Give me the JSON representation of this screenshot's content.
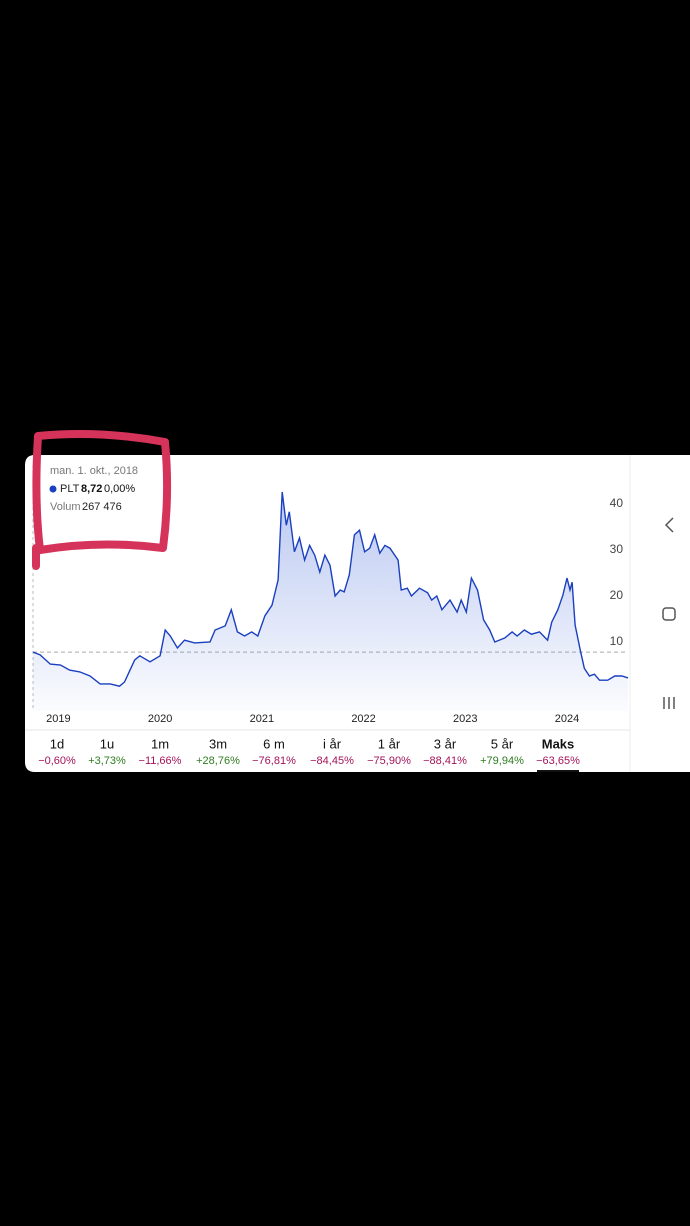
{
  "tooltip": {
    "date": "man. 1. okt., 2018",
    "symbol": "PLT",
    "price": "8,72",
    "change": "0,00%",
    "volume_label": "Volum",
    "volume": "267 476"
  },
  "chart_data": {
    "type": "line",
    "x": [
      2018.75,
      2018.82,
      2018.92,
      2019.02,
      2019.11,
      2019.21,
      2019.31,
      2019.41,
      2019.51,
      2019.6,
      2019.65,
      2019.75,
      2019.8,
      2019.9,
      2020.0,
      2020.05,
      2020.1,
      2020.17,
      2020.24,
      2020.34,
      2020.49,
      2020.54,
      2020.64,
      2020.7,
      2020.76,
      2020.83,
      2020.9,
      2020.96,
      2021.03,
      2021.1,
      2021.16,
      2021.2,
      2021.24,
      2021.27,
      2021.32,
      2021.37,
      2021.42,
      2021.47,
      2021.52,
      2021.57,
      2021.62,
      2021.67,
      2021.72,
      2021.77,
      2021.81,
      2021.86,
      2021.91,
      2021.96,
      2022.01,
      2022.06,
      2022.11,
      2022.16,
      2022.21,
      2022.26,
      2022.34,
      2022.37,
      2022.43,
      2022.47,
      2022.55,
      2022.63,
      2022.67,
      2022.72,
      2022.77,
      2022.85,
      2022.92,
      2022.96,
      2023.01,
      2023.06,
      2023.12,
      2023.18,
      2023.24,
      2023.29,
      2023.39,
      2023.46,
      2023.51,
      2023.58,
      2023.65,
      2023.73,
      2023.81,
      2023.85,
      2023.91,
      2023.96,
      2024.0,
      2024.03,
      2024.05,
      2024.08,
      2024.13,
      2024.17,
      2024.22,
      2024.27,
      2024.32,
      2024.4,
      2024.47,
      2024.54,
      2024.6
    ],
    "series": [
      {
        "name": "PLT",
        "color": "#1a3fbf",
        "values": [
          7.8,
          7.2,
          5.2,
          5.0,
          3.9,
          3.5,
          2.6,
          0.9,
          0.9,
          0.4,
          1.3,
          6.1,
          7.0,
          5.7,
          7.0,
          12.6,
          11.3,
          8.7,
          10.4,
          9.8,
          10,
          12.6,
          13.5,
          17,
          12.2,
          11.3,
          12.2,
          11.3,
          15.7,
          18,
          23.5,
          42.6,
          35.4,
          38.3,
          29.6,
          32.6,
          27.8,
          31,
          28.9,
          25.2,
          28.9,
          26.7,
          20,
          21.3,
          20.9,
          24.6,
          33.3,
          34.3,
          29.6,
          30.4,
          33.3,
          29.3,
          31,
          30.4,
          27.8,
          21.3,
          21.7,
          20,
          21.7,
          20.7,
          19.1,
          20,
          17,
          19.1,
          16.5,
          19.1,
          16.5,
          23.9,
          21.3,
          14.8,
          12.6,
          10,
          10.9,
          12.2,
          11.3,
          12.6,
          11.7,
          12.2,
          10.4,
          14.3,
          17,
          20.2,
          23.9,
          21.3,
          23,
          13.7,
          8.3,
          4.3,
          2.6,
          3,
          1.7,
          1.7,
          2.6,
          2.6,
          2.2
        ]
      }
    ],
    "xlim": [
      2018.75,
      2024.6
    ],
    "xticks": [
      2019,
      2020,
      2021,
      2022,
      2023,
      2024
    ],
    "ylim": [
      -5,
      45
    ],
    "yticks": [
      10,
      20,
      30,
      40
    ]
  },
  "periods": [
    {
      "label": "1d",
      "change": "−0,60%",
      "color": "#a3135a"
    },
    {
      "label": "1u",
      "change": "+3,73%",
      "color": "#2e7d1f"
    },
    {
      "label": "1m",
      "change": "−11,66%",
      "color": "#a3135a"
    },
    {
      "label": "3m",
      "change": "+28,76%",
      "color": "#2e7d1f"
    },
    {
      "label": "6 m",
      "change": "−76,81%",
      "color": "#a3135a"
    },
    {
      "label": "i år",
      "change": "−84,45%",
      "color": "#a3135a"
    },
    {
      "label": "1 år",
      "change": "−75,90%",
      "color": "#a3135a"
    },
    {
      "label": "3 år",
      "change": "−88,41%",
      "color": "#a3135a"
    },
    {
      "label": "5 år",
      "change": "+79,94%",
      "color": "#2e7d1f"
    },
    {
      "label": "Maks",
      "change": "−63,65%",
      "color": "#a3135a",
      "active": true
    }
  ]
}
